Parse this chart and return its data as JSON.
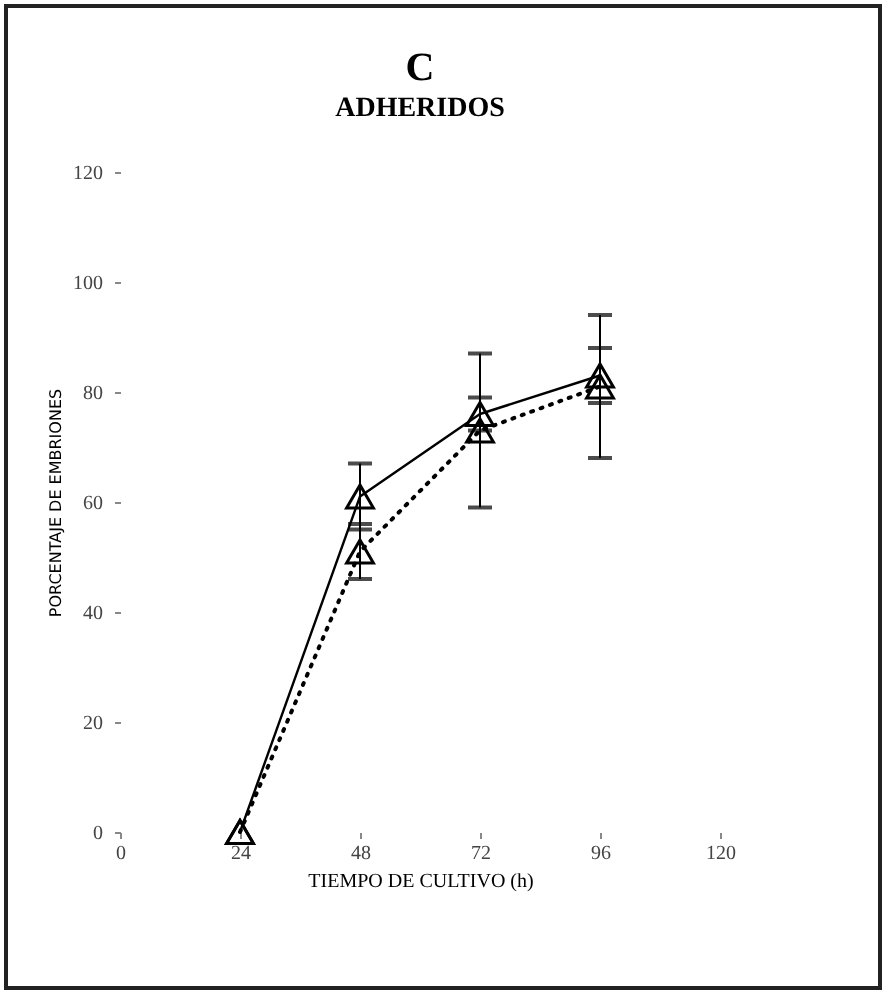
{
  "chart_data": {
    "type": "line",
    "title": "C",
    "subtitle": "ADHERIDOS",
    "xlabel": "TIEMPO DE CULTIVO (h)",
    "ylabel": "PORCENTAJE DE EMBRIONES",
    "x": [
      24,
      48,
      72,
      96
    ],
    "series": [
      {
        "color": "#000000",
        "line_style": "solid",
        "values": [
          0,
          61,
          76,
          83
        ],
        "errors": [
          null,
          6,
          3,
          5
        ]
      },
      {
        "color": "#000000",
        "line_style": "dotted",
        "values": [
          0,
          51,
          73,
          81
        ],
        "errors": [
          null,
          5,
          14,
          13
        ]
      }
    ],
    "xlim": [
      0,
      120
    ],
    "xticks": [
      0,
      24,
      48,
      72,
      96,
      120
    ],
    "ylim": [
      0,
      120
    ],
    "yticks": [
      0,
      20,
      40,
      60,
      80,
      100,
      120
    ],
    "marker": "triangle",
    "grid": false
  }
}
